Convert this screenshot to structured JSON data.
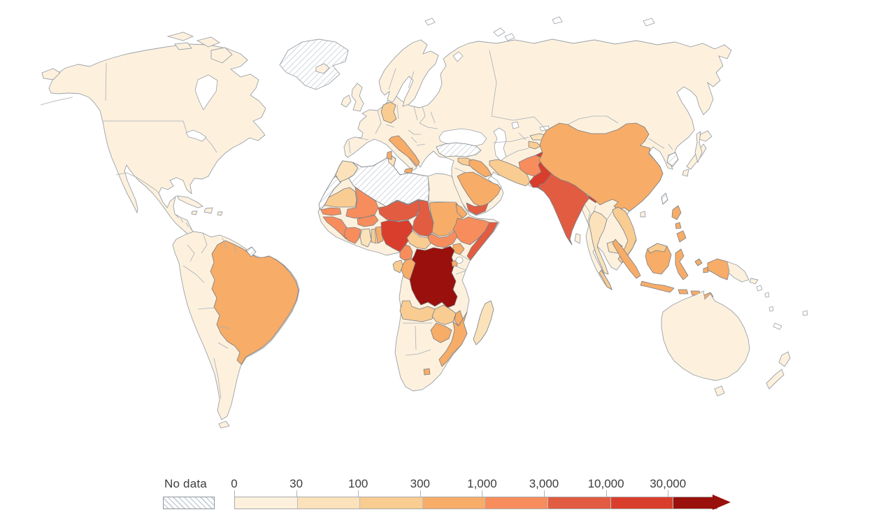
{
  "legend": {
    "no_data_label": "No data",
    "ticks": [
      "0",
      "30",
      "100",
      "300",
      "1,000",
      "3,000",
      "10,000",
      "30,000"
    ]
  },
  "palette": {
    "bins": [
      "#FDF1DE",
      "#FBE2BA",
      "#F9CC92",
      "#F7AC68",
      "#F78D5D",
      "#E25C42",
      "#D93E2C",
      "#99100C"
    ],
    "no_data_key": "nd",
    "hatch_line": "#c6cdd4",
    "coast_stroke": "#9aa1a8",
    "country_stroke": "#777e85",
    "ocean": "#ffffff"
  },
  "map": {
    "countries": {
      "north-america": 1,
      "greenland": "nd",
      "iceland": 1,
      "cuba": 1,
      "hispaniola": 1,
      "jamaica": 1,
      "puerto-rico": 1,
      "south-america": 1,
      "brazil": 4,
      "french-guiana": "nd",
      "tierra-del-fuego": 1,
      "eurasia": 1,
      "scandinavia": 1,
      "uk": 1,
      "ireland": 1,
      "chukotka-wrap": 1,
      "germany": 3,
      "italy": 4,
      "sicily": 4,
      "sardinia": 4,
      "turkey": "nd",
      "syria": 3,
      "iraq": 4,
      "iran": 3,
      "saudi-arabia": 4,
      "yemen": 6,
      "kyrgyzstan": 2,
      "tajikistan": 3,
      "afghanistan": 5,
      "pakistan": 7,
      "india": 6,
      "india-northeast": 6,
      "bangladesh": 7,
      "nepal": 3,
      "bhutan": 4,
      "sri-lanka": 1,
      "china": 4,
      "taiwan": "nd",
      "south-korea": "nd",
      "japan-hokkaido": 1,
      "japan-honshu": 1,
      "japan-kyushu": 1,
      "sakhalin": 1,
      "hainan": 1,
      "thailand": 2,
      "vietnam": 3,
      "cambodia": 2,
      "malaysia-peninsula": 3,
      "malaysia-borneo": 3,
      "sumatra": 4,
      "java": 4,
      "borneo": 4,
      "sulawesi": 4,
      "lesser-sunda-1": 4,
      "lesser-sunda-2": 4,
      "maluku-1": 4,
      "timor": 4,
      "papua-indonesia": 4,
      "papua-new-guinea": 1,
      "new-britain": 1,
      "luzon": 4,
      "visayas": 4,
      "mindanao": 4,
      "australia": 1,
      "tasmania": 1,
      "new-zealand-north": 1,
      "new-zealand-south": 1,
      "africa-base": 1,
      "morocco": 2,
      "tunisia": 2,
      "algeria-libya": "nd",
      "western-sahara": "nd",
      "mauritania": 3,
      "senegal": 5,
      "guinea": 5,
      "mali": 5,
      "burkina-faso": 5,
      "ivory-coast": 5,
      "ghana": 2,
      "togo": 3,
      "benin": 4,
      "niger": 6,
      "nigeria": 7,
      "chad": 6,
      "sudan": 4,
      "eritrea": 4,
      "ethiopia": 5,
      "somalia": 6,
      "south-sudan": 5,
      "central-african-republic": 3,
      "cameroon": 5,
      "uganda": 4,
      "rwanda-burundi": 4,
      "dr-congo": 8,
      "congo": 4,
      "gabon": 3,
      "angola": 3,
      "zambia": 3,
      "malawi": 4,
      "mozambique": 4,
      "zimbabwe": 4,
      "madagascar": 2,
      "lesotho": 4
    }
  }
}
